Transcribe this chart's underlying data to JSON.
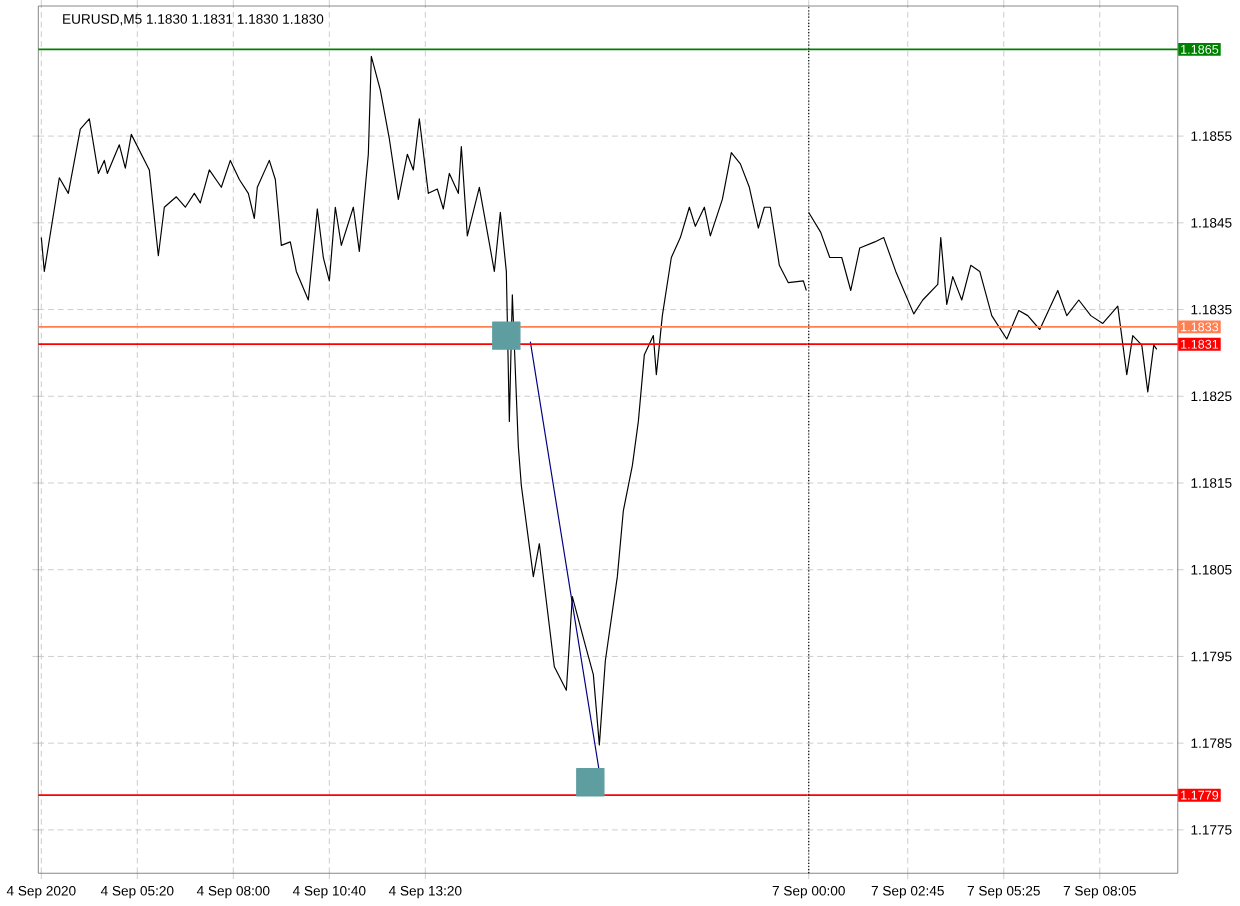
{
  "chart_data": [
    {
      "type": "line",
      "title": "EURUSD,M5  1.1830 1.1831 1.1830 1.1830",
      "tick_labels": "x",
      "xlim": [
        "2020-09-04T02:35",
        "2020-09-04T23:57"
      ],
      "ylim": [
        1.177,
        1.187
      ],
      "xticks": [
        {
          "value": "2020-09-04T02:40",
          "label": "4 Sep 2020"
        },
        {
          "value": "2020-09-04T05:20",
          "label": "4 Sep 05:20"
        },
        {
          "value": "2020-09-04T08:00",
          "label": "4 Sep 08:00"
        },
        {
          "value": "2020-09-04T10:40",
          "label": "4 Sep 10:40"
        },
        {
          "value": "2020-09-04T13:20",
          "label": "4 Sep 13:20"
        }
      ],
      "yticks": [
        1.1775,
        1.1785,
        1.1795,
        1.1805,
        1.1815,
        1.1825,
        1.1835,
        1.1845,
        1.1855
      ],
      "grid": true,
      "series": [
        {
          "color": "#000000",
          "x": [
            "2020-09-04T02:40",
            "2020-09-04T02:45",
            "2020-09-04T03:10",
            "2020-09-04T03:25",
            "2020-09-04T03:45",
            "2020-09-04T04:00",
            "2020-09-04T04:15",
            "2020-09-04T04:25",
            "2020-09-04T04:30",
            "2020-09-04T04:50",
            "2020-09-04T05:00",
            "2020-09-04T05:10",
            "2020-09-04T05:40",
            "2020-09-04T05:55",
            "2020-09-04T06:05",
            "2020-09-04T06:25",
            "2020-09-04T06:40",
            "2020-09-04T06:55",
            "2020-09-04T07:05",
            "2020-09-04T07:20",
            "2020-09-04T07:40",
            "2020-09-04T07:55",
            "2020-09-04T08:10",
            "2020-09-04T08:25",
            "2020-09-04T08:35",
            "2020-09-04T08:40",
            "2020-09-04T09:00",
            "2020-09-04T09:10",
            "2020-09-04T09:20",
            "2020-09-04T09:35",
            "2020-09-04T09:45",
            "2020-09-04T10:05",
            "2020-09-04T10:20",
            "2020-09-04T10:30",
            "2020-09-04T10:40",
            "2020-09-04T10:50",
            "2020-09-04T11:00",
            "2020-09-04T11:20",
            "2020-09-04T11:30",
            "2020-09-04T11:45",
            "2020-09-04T11:50",
            "2020-09-04T12:05",
            "2020-09-04T12:20",
            "2020-09-04T12:35",
            "2020-09-04T12:50",
            "2020-09-04T13:00",
            "2020-09-04T13:10",
            "2020-09-04T13:25",
            "2020-09-04T13:40",
            "2020-09-04T13:50",
            "2020-09-04T14:00",
            "2020-09-04T14:15",
            "2020-09-04T14:20",
            "2020-09-04T14:30",
            "2020-09-04T14:50",
            "2020-09-04T15:05",
            "2020-09-04T15:15",
            "2020-09-04T15:25",
            "2020-09-04T15:35",
            "2020-09-04T15:40",
            "2020-09-04T15:45",
            "2020-09-04T15:55",
            "2020-09-04T16:00",
            "2020-09-04T16:20",
            "2020-09-04T16:30",
            "2020-09-04T16:55",
            "2020-09-04T17:15",
            "2020-09-04T17:25",
            "2020-09-04T17:45",
            "2020-09-04T18:00",
            "2020-09-04T18:10",
            "2020-09-04T18:20",
            "2020-09-04T18:40",
            "2020-09-04T18:50",
            "2020-09-04T19:05",
            "2020-09-04T19:15",
            "2020-09-04T19:25",
            "2020-09-04T19:40",
            "2020-09-04T19:45",
            "2020-09-04T19:55",
            "2020-09-04T20:10",
            "2020-09-04T20:25",
            "2020-09-04T20:40",
            "2020-09-04T20:50",
            "2020-09-04T21:05",
            "2020-09-04T21:15",
            "2020-09-04T21:35",
            "2020-09-04T21:50",
            "2020-09-04T22:05",
            "2020-09-04T22:20",
            "2020-09-04T22:35",
            "2020-09-04T22:45",
            "2020-09-04T22:55",
            "2020-09-04T23:10",
            "2020-09-04T23:25",
            "2020-09-04T23:50",
            "2020-09-04T23:55"
          ],
          "values": [
            1.18433,
            1.18394,
            1.18502,
            1.18484,
            1.18558,
            1.1857,
            1.18507,
            1.18522,
            1.18507,
            1.1854,
            1.18513,
            1.18552,
            1.18511,
            1.18412,
            1.18468,
            1.1848,
            1.18468,
            1.18484,
            1.18473,
            1.18511,
            1.18491,
            1.18522,
            1.185,
            1.18484,
            1.18455,
            1.18491,
            1.18522,
            1.185,
            1.18424,
            1.18428,
            1.18394,
            1.18361,
            1.18466,
            1.1841,
            1.18383,
            1.18468,
            1.18424,
            1.18468,
            1.18417,
            1.18529,
            1.18642,
            1.18603,
            1.18547,
            1.18477,
            1.18529,
            1.18511,
            1.1857,
            1.18484,
            1.18489,
            1.18466,
            1.18507,
            1.18484,
            1.18538,
            1.18435,
            1.18491,
            1.18433,
            1.18394,
            1.18462,
            1.18394,
            1.18221,
            1.18367,
            1.18192,
            1.18147,
            1.18042,
            1.1808,
            1.17938,
            1.17911,
            1.18019,
            1.17967,
            1.17929,
            1.17848,
            1.17945,
            1.18042,
            1.18118,
            1.1817,
            1.18221,
            1.18298,
            1.1832,
            1.18275,
            1.18343,
            1.1841,
            1.18433,
            1.18468,
            1.18446,
            1.18468,
            1.18435,
            1.18477,
            1.18531,
            1.18518,
            1.18491,
            1.18444,
            1.18468,
            1.18468,
            1.18401,
            1.18381,
            1.18383,
            1.18372
          ]
        },
        {
          "type": "scatter",
          "marker": "square",
          "color": "#5f9ea0",
          "x": [
            "2020-09-04T15:35",
            "2020-09-04T17:55"
          ],
          "values": [
            1.1832,
            1.17805
          ]
        },
        {
          "type": "line",
          "color": "#000080",
          "x": [
            "2020-09-04T16:15",
            "2020-09-04T18:10"
          ],
          "values": [
            1.18313,
            1.17817
          ]
        }
      ],
      "ref_lines": [
        {
          "axis": "y",
          "value": 1.1865,
          "color": "#008000"
        },
        {
          "axis": "y",
          "value": 1.1833,
          "color": "#ff7f50"
        },
        {
          "axis": "y",
          "value": 1.1831,
          "color": "#ff0000"
        },
        {
          "axis": "y",
          "value": 1.1779,
          "color": "#ff0000"
        }
      ]
    },
    {
      "type": "line",
      "xlim": [
        "2020-09-06T23:58",
        "2020-09-07T10:15"
      ],
      "ylim": [
        1.177,
        1.187
      ],
      "xticks": [
        {
          "value": "2020-09-07T00:00",
          "label": "7 Sep 00:00"
        },
        {
          "value": "2020-09-07T02:45",
          "label": "7 Sep 02:45"
        },
        {
          "value": "2020-09-07T05:25",
          "label": "7 Sep 05:25"
        },
        {
          "value": "2020-09-07T08:05",
          "label": "7 Sep 08:05"
        }
      ],
      "yticks": [
        1.1775,
        1.1785,
        1.1795,
        1.1805,
        1.1815,
        1.1825,
        1.1835,
        1.1845,
        1.1855
      ],
      "grid": true,
      "series": [
        {
          "color": "#000000",
          "x": [
            "2020-09-07T00:00",
            "2020-09-07T00:20",
            "2020-09-07T00:35",
            "2020-09-07T00:55",
            "2020-09-07T01:10",
            "2020-09-07T01:25",
            "2020-09-07T01:50",
            "2020-09-07T02:05",
            "2020-09-07T02:25",
            "2020-09-07T02:55",
            "2020-09-07T03:10",
            "2020-09-07T03:35",
            "2020-09-07T03:40",
            "2020-09-07T03:50",
            "2020-09-07T04:00",
            "2020-09-07T04:15",
            "2020-09-07T04:30",
            "2020-09-07T04:45",
            "2020-09-07T05:05",
            "2020-09-07T05:30",
            "2020-09-07T05:50",
            "2020-09-07T06:05",
            "2020-09-07T06:25",
            "2020-09-07T06:55",
            "2020-09-07T07:10",
            "2020-09-07T07:30",
            "2020-09-07T07:50",
            "2020-09-07T08:10",
            "2020-09-07T08:35",
            "2020-09-07T08:50",
            "2020-09-07T09:00",
            "2020-09-07T09:15",
            "2020-09-07T09:25",
            "2020-09-07T09:35",
            "2020-09-07T09:40"
          ],
          "values": [
            1.18462,
            1.18439,
            1.1841,
            1.1841,
            1.18372,
            1.18421,
            1.18428,
            1.18433,
            1.18394,
            1.18345,
            1.18361,
            1.18379,
            1.18433,
            1.18356,
            1.18388,
            1.18361,
            1.18401,
            1.18394,
            1.18343,
            1.18316,
            1.18349,
            1.18343,
            1.18327,
            1.18372,
            1.18343,
            1.18361,
            1.18343,
            1.18334,
            1.18354,
            1.18275,
            1.1832,
            1.18309,
            1.18255,
            1.18309,
            1.18304
          ]
        }
      ],
      "ref_lines": [
        {
          "axis": "y",
          "value": 1.1865,
          "label": "1.1865",
          "color": "#008000"
        },
        {
          "axis": "y",
          "value": 1.1833,
          "label": "1.1833",
          "color": "#ff7f50"
        },
        {
          "axis": "y",
          "value": 1.1831,
          "label": "1.1831",
          "color": "#ff0000"
        },
        {
          "axis": "y",
          "value": 1.1779,
          "label": "1.1779",
          "color": "#ff0000"
        },
        {
          "axis": "x",
          "value": "2020-09-07T00:00",
          "color": "#000000",
          "line_style": "dotted"
        }
      ]
    }
  ]
}
